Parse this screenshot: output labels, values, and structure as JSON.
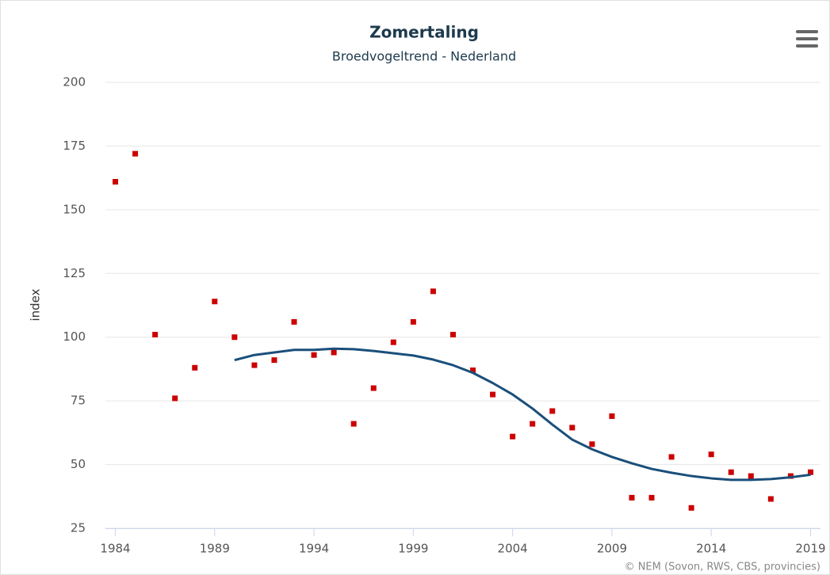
{
  "chart_data": {
    "type": "scatter",
    "title": "Zomertaling",
    "subtitle": "Broedvogeltrend - Nederland",
    "y_label": "index",
    "credits": "© NEM (Sovon, RWS, CBS, provincies)",
    "x": [
      1984,
      1985,
      1986,
      1987,
      1988,
      1989,
      1990,
      1991,
      1992,
      1993,
      1994,
      1995,
      1996,
      1997,
      1998,
      1999,
      2000,
      2001,
      2002,
      2003,
      2004,
      2005,
      2006,
      2007,
      2008,
      2009,
      2010,
      2011,
      2012,
      2013,
      2014,
      2015,
      2016,
      2017,
      2018,
      2019
    ],
    "series": [
      {
        "type": "scatter",
        "color": "#cc0000",
        "values": [
          161,
          172,
          101,
          76,
          88,
          114,
          100,
          89,
          91,
          106,
          93,
          94,
          66,
          80,
          98,
          106,
          118,
          101,
          87,
          77.5,
          61,
          66,
          71,
          64.5,
          58,
          69,
          37,
          37,
          53,
          33,
          54,
          47,
          45.5,
          36.5,
          45.5,
          47
        ]
      },
      {
        "type": "line",
        "color": "#1a4f7a",
        "values": [
          null,
          null,
          null,
          null,
          null,
          null,
          91,
          93,
          94,
          95,
          95,
          95.5,
          95.3,
          94.6,
          93.7,
          92.8,
          91.2,
          89,
          86,
          82,
          77.5,
          72,
          65.7,
          59.8,
          56,
          53,
          50.5,
          48.3,
          46.8,
          45.5,
          44.6,
          44,
          44,
          44.3,
          45,
          46
        ]
      }
    ],
    "xlim": [
      1983.5,
      2019.5
    ],
    "xticks": [
      1984,
      1989,
      1994,
      1999,
      2004,
      2009,
      2014,
      2019
    ],
    "ylim": [
      25,
      200
    ],
    "yticks": [
      25,
      50,
      75,
      100,
      125,
      150,
      175,
      200
    ],
    "grid": true
  }
}
